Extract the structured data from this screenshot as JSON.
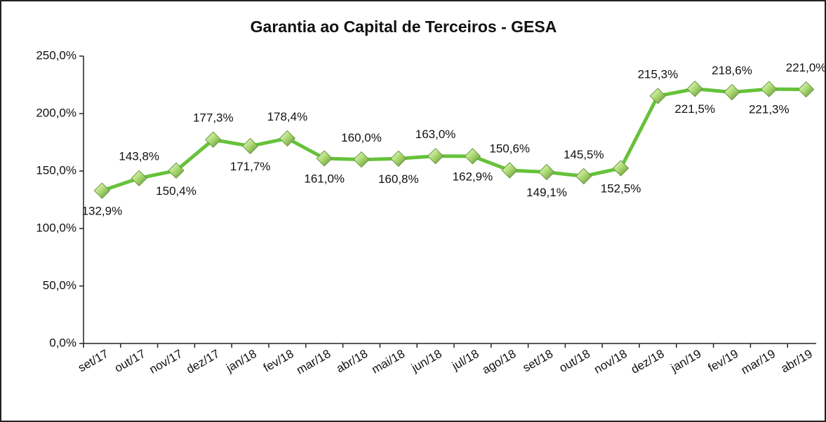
{
  "chart_data": {
    "type": "line",
    "title": "Garantia ao Capital de Terceiros - GESA",
    "categories": [
      "set/17",
      "out/17",
      "nov/17",
      "dez/17",
      "jan/18",
      "fev/18",
      "mar/18",
      "abr/18",
      "mai/18",
      "jun/18",
      "jul/18",
      "ago/18",
      "set/18",
      "out/18",
      "nov/18",
      "dez/18",
      "jan/19",
      "fev/19",
      "mar/19",
      "abr/19"
    ],
    "values": [
      132.9,
      143.8,
      150.4,
      177.3,
      171.7,
      178.4,
      161.0,
      160.0,
      160.8,
      163.0,
      162.9,
      150.6,
      149.1,
      145.5,
      152.5,
      215.3,
      221.5,
      218.6,
      221.3,
      221.0
    ],
    "value_labels": [
      "132,9%",
      "143,8%",
      "150,4%",
      "177,3%",
      "171,7%",
      "178,4%",
      "161,0%",
      "160,0%",
      "160,8%",
      "163,0%",
      "162,9%",
      "150,6%",
      "149,1%",
      "145,5%",
      "152,5%",
      "215,3%",
      "221,5%",
      "218,6%",
      "221,3%",
      "221,0%"
    ],
    "color": "#66c23a",
    "ylim": [
      0,
      250
    ],
    "yticks": [
      {
        "value": 0,
        "label": "0,0%"
      },
      {
        "value": 50,
        "label": "50,0%"
      },
      {
        "value": 100,
        "label": "100,0%"
      },
      {
        "value": 150,
        "label": "150,0%"
      },
      {
        "value": 200,
        "label": "200,0%"
      },
      {
        "value": 250,
        "label": "250,0%"
      }
    ]
  }
}
